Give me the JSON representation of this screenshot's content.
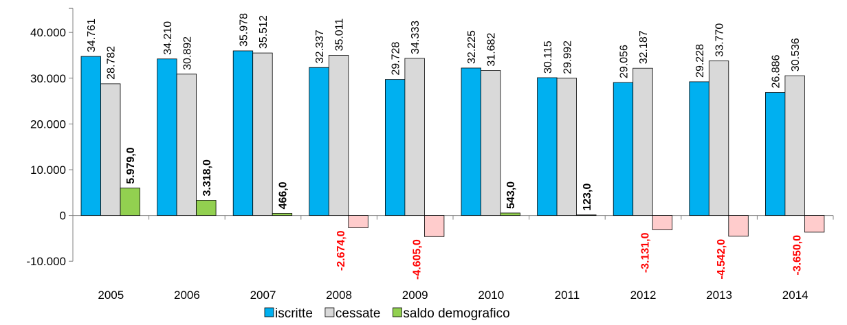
{
  "chart_data": {
    "type": "bar",
    "categories": [
      "2005",
      "2006",
      "2007",
      "2008",
      "2009",
      "2010",
      "2011",
      "2012",
      "2013",
      "2014"
    ],
    "series": [
      {
        "name": "iscritte",
        "color": "#00b0f0",
        "values": [
          34761,
          34210,
          35978,
          32337,
          29728,
          32225,
          30115,
          29056,
          29228,
          26886
        ],
        "labels": [
          "34.761",
          "34.210",
          "35.978",
          "32.337",
          "29.728",
          "32.225",
          "30.115",
          "29.056",
          "29.228",
          "26.886"
        ]
      },
      {
        "name": "cessate",
        "color": "#d9d9d9",
        "values": [
          28782,
          30892,
          35512,
          35011,
          34333,
          31682,
          29992,
          32187,
          33770,
          30536
        ],
        "labels": [
          "28.782",
          "30.892",
          "35.512",
          "35.011",
          "34.333",
          "31.682",
          "29.992",
          "32.187",
          "33.770",
          "30.536"
        ]
      },
      {
        "name": "saldo demografico",
        "color": "#92d050",
        "negative_color": "#ffcccc",
        "values": [
          5979,
          3318,
          466,
          -2674,
          -4605,
          543,
          123,
          -3131,
          -4542,
          -3650
        ],
        "labels": [
          "5.979,0",
          "3.318,0",
          "466,0",
          "-2.674,0",
          "-4.605,0",
          "543,0",
          "123,0",
          "-3.131,0",
          "-4.542,0",
          "-3.650,0"
        ]
      }
    ],
    "ylim": [
      -10000,
      40000
    ],
    "yticks": [
      -10000,
      0,
      10000,
      20000,
      30000,
      40000
    ],
    "ytick_labels": [
      "-10.000",
      "0",
      "10.000",
      "20.000",
      "30.000",
      "40.000"
    ],
    "label_colors": {
      "positive": "#000000",
      "negative": "#ff0000"
    },
    "grid": false,
    "legend_position": "bottom",
    "title": "",
    "xlabel": "",
    "ylabel": ""
  }
}
